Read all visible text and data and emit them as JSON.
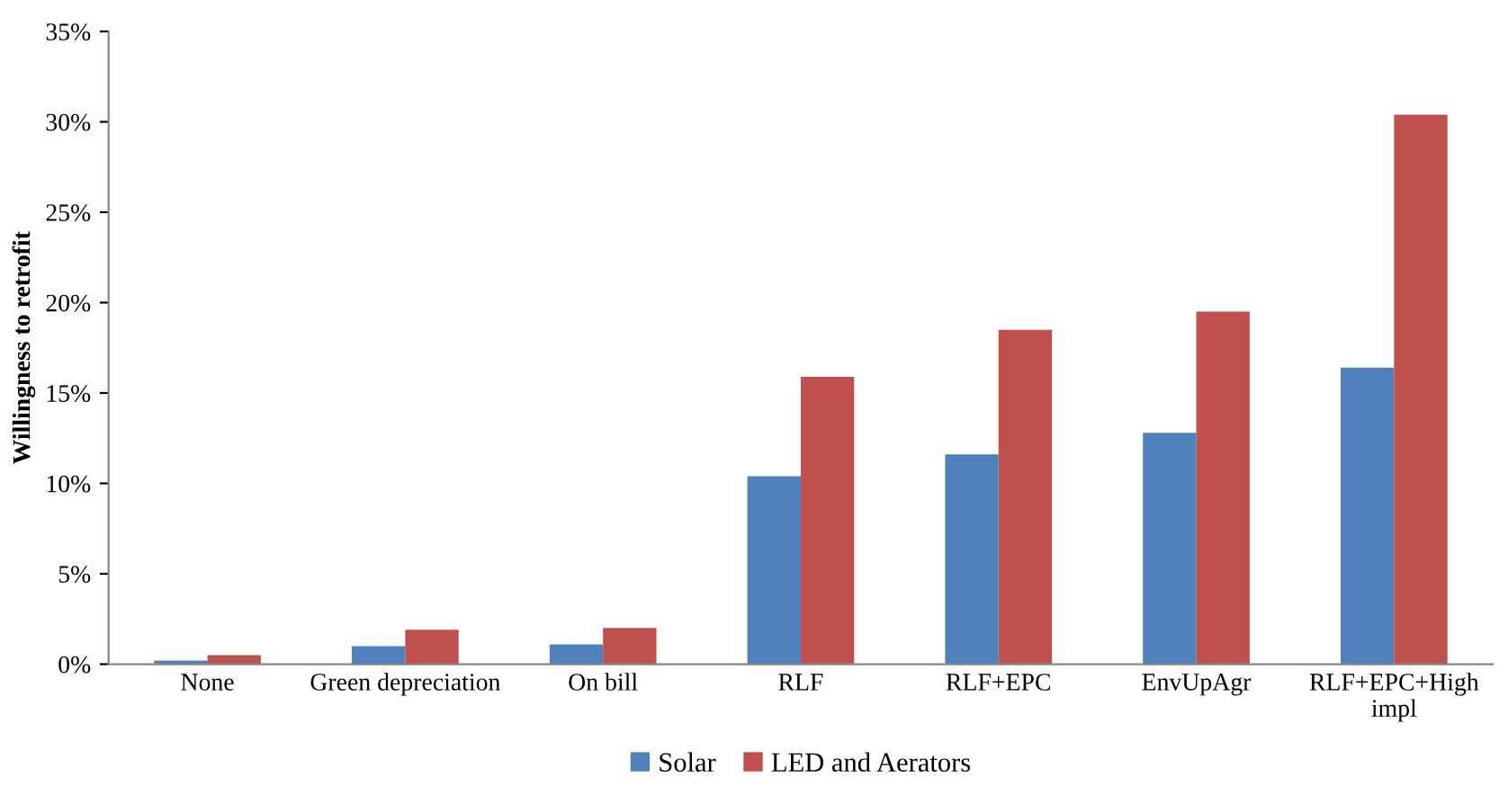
{
  "chart_data": {
    "type": "bar",
    "ylabel": "Willingness to retrofit",
    "categories": [
      "None",
      "Green depreciation",
      "On bill",
      "RLF",
      "RLF+EPC",
      "EnvUpAgr",
      "RLF+EPC+High\nimpl"
    ],
    "series": [
      {
        "name": "Solar",
        "color": "#4f81bd",
        "values": [
          0.2,
          1.0,
          1.1,
          10.4,
          11.6,
          12.8,
          16.4
        ]
      },
      {
        "name": "LED and Aerators",
        "color": "#c0504d",
        "values": [
          0.5,
          1.9,
          2.0,
          15.9,
          18.5,
          19.5,
          30.4
        ]
      }
    ],
    "ylim": [
      0,
      35
    ],
    "yticks": [
      {
        "value": 0,
        "label": "0%"
      },
      {
        "value": 5,
        "label": "5%"
      },
      {
        "value": 10,
        "label": "10%"
      },
      {
        "value": 15,
        "label": "15%"
      },
      {
        "value": 20,
        "label": "20%"
      },
      {
        "value": 25,
        "label": "25%"
      },
      {
        "value": 30,
        "label": "30%"
      },
      {
        "value": 35,
        "label": "35%"
      }
    ],
    "grid": false,
    "legend": "bottom"
  }
}
